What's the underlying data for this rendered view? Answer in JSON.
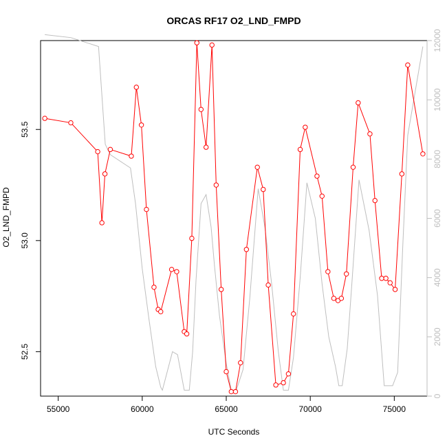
{
  "chart_data": {
    "type": "line",
    "title": "ORCAS RF17 O2_LND_FMPD",
    "xlabel": "UTC Seconds",
    "ylabel": "O2_LND_FMPD",
    "xlim": [
      53950,
      76950
    ],
    "ylim": [
      52.3,
      53.9
    ],
    "y2lim": [
      0,
      12000
    ],
    "x_ticks": [
      55000,
      60000,
      65000,
      70000,
      75000
    ],
    "x_tick_labels": [
      "55000",
      "60000",
      "65000",
      "70000",
      "75000"
    ],
    "y_ticks": [
      52.5,
      53.0,
      53.5
    ],
    "y_tick_labels": [
      "52.5",
      "53.0",
      "53.5"
    ],
    "y2_ticks": [
      0,
      2000,
      4000,
      6000,
      8000,
      10000,
      12000
    ],
    "y2_tick_labels": [
      "0",
      "2000",
      "4000",
      "6000",
      "8000",
      "10000",
      "12000"
    ],
    "colors": {
      "primary": "#ff0000",
      "secondary": "#bebebe",
      "axes": "#000000"
    },
    "series": [
      {
        "axis": "left",
        "style": "line-points",
        "color": "#ff0000",
        "x": [
          54200,
          55750,
          57350,
          57600,
          57780,
          58100,
          59350,
          59650,
          59950,
          60250,
          60700,
          60950,
          61100,
          61750,
          62050,
          62500,
          62650,
          62950,
          63250,
          63500,
          63800,
          64150,
          64400,
          64700,
          65000,
          65300,
          65550,
          65850,
          66200,
          66850,
          67200,
          67500,
          67950,
          68400,
          68700,
          69000,
          69400,
          69700,
          70400,
          70700,
          71050,
          71400,
          71650,
          71850,
          72150,
          72550,
          72850,
          73550,
          73850,
          74250,
          74500,
          74750,
          75050,
          75450,
          75800,
          76700
        ],
        "y": [
          53.55,
          53.53,
          53.4,
          53.08,
          53.3,
          53.41,
          53.38,
          53.69,
          53.52,
          53.14,
          52.79,
          52.69,
          52.68,
          52.87,
          52.86,
          52.59,
          52.58,
          53.01,
          53.89,
          53.59,
          53.42,
          53.88,
          53.25,
          52.78,
          52.41,
          52.32,
          52.32,
          52.45,
          52.96,
          53.33,
          53.23,
          52.8,
          52.35,
          52.36,
          52.4,
          52.67,
          53.41,
          53.51,
          53.29,
          53.2,
          52.86,
          52.74,
          52.73,
          52.74,
          52.85,
          53.33,
          53.62,
          53.48,
          53.18,
          52.83,
          52.83,
          52.81,
          52.78,
          53.3,
          53.79,
          53.39
        ]
      },
      {
        "axis": "right",
        "style": "line",
        "color": "#bebebe",
        "x": [
          54200,
          55750,
          57400,
          57800,
          58100,
          59300,
          59600,
          60000,
          60400,
          60800,
          61100,
          61200,
          61800,
          62100,
          62500,
          62800,
          63000,
          63200,
          63500,
          63800,
          64100,
          64300,
          64600,
          65000,
          65300,
          65600,
          66000,
          66400,
          66900,
          67300,
          67700,
          68100,
          68400,
          68700,
          69000,
          69400,
          69800,
          70300,
          70700,
          71100,
          71500,
          71700,
          71900,
          72200,
          72500,
          72900,
          73500,
          74000,
          74400,
          74600,
          74900,
          75200,
          75500,
          75800,
          76700
        ],
        "y": [
          12200,
          12100,
          11800,
          8500,
          8150,
          7700,
          6500,
          4300,
          2600,
          1000,
          300,
          200,
          1500,
          1400,
          200,
          200,
          1500,
          3900,
          6500,
          6800,
          5700,
          4400,
          2700,
          1100,
          200,
          200,
          900,
          3300,
          7000,
          5700,
          3800,
          1500,
          200,
          200,
          1300,
          4000,
          7200,
          6000,
          3800,
          2000,
          1000,
          350,
          350,
          1600,
          4000,
          7300,
          5600,
          3400,
          350,
          350,
          350,
          800,
          5000,
          8800,
          11800
        ]
      }
    ]
  }
}
